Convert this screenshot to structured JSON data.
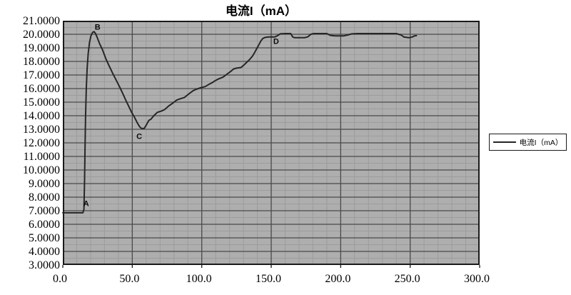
{
  "title": "电流I（mA）",
  "legend": {
    "label": "电流I（mA）"
  },
  "colors": {
    "page_bg": "#ffffff",
    "plot_bg": "#aeaeae",
    "grid_minor": "#9c9c9c",
    "grid_major": "#4a4a4a",
    "frame": "#1a1a1a",
    "line": "#262626",
    "text": "#000000"
  },
  "chart_data": {
    "type": "line",
    "title": "电流I（mA）",
    "xlabel": "",
    "ylabel": "",
    "xlim": [
      0,
      300
    ],
    "ylim": [
      3,
      21
    ],
    "x_ticks": [
      "0.0",
      "50.0",
      "100.0",
      "150.0",
      "200.0",
      "250.0",
      "300.0"
    ],
    "y_ticks": [
      "21.0000",
      "20.0000",
      "19.0000",
      "18.0000",
      "17.0000",
      "16.0000",
      "15.0000",
      "14.0000",
      "13.0000",
      "12.0000",
      "11.0000",
      "10.0000",
      "9.0000",
      "8.0000",
      "7.0000",
      "6.0000",
      "5.0000",
      "4.0000",
      "3.0000"
    ],
    "grid": true,
    "legend_position": "right",
    "series": [
      {
        "name": "电流I（mA）",
        "points": [
          [
            0,
            6.85
          ],
          [
            14.5,
            6.85
          ],
          [
            15.2,
            7.1
          ],
          [
            15.6,
            9.0
          ],
          [
            16.0,
            11.5
          ],
          [
            16.4,
            14.0
          ],
          [
            16.9,
            16.0
          ],
          [
            17.5,
            17.5
          ],
          [
            18.3,
            18.6
          ],
          [
            19.2,
            19.4
          ],
          [
            20.3,
            19.9
          ],
          [
            21.5,
            20.15
          ],
          [
            22.5,
            20.2
          ],
          [
            23.6,
            20.05
          ],
          [
            24.8,
            19.75
          ],
          [
            26.5,
            19.3
          ],
          [
            28.4,
            18.9
          ],
          [
            31.0,
            18.2
          ],
          [
            33.0,
            17.75
          ],
          [
            36.0,
            17.1
          ],
          [
            38.0,
            16.7
          ],
          [
            41.0,
            16.1
          ],
          [
            43.3,
            15.6
          ],
          [
            45.5,
            15.1
          ],
          [
            47.4,
            14.7
          ],
          [
            49.5,
            14.25
          ],
          [
            51.5,
            13.9
          ],
          [
            53.5,
            13.5
          ],
          [
            55.2,
            13.2
          ],
          [
            56.5,
            13.07
          ],
          [
            58.5,
            13.05
          ],
          [
            60.0,
            13.3
          ],
          [
            61.9,
            13.65
          ],
          [
            63.5,
            13.75
          ],
          [
            65.5,
            14.0
          ],
          [
            68.0,
            14.25
          ],
          [
            71.0,
            14.35
          ],
          [
            73.2,
            14.45
          ],
          [
            76.0,
            14.7
          ],
          [
            79.4,
            14.95
          ],
          [
            82.0,
            15.15
          ],
          [
            84.5,
            15.25
          ],
          [
            87.6,
            15.35
          ],
          [
            90.0,
            15.55
          ],
          [
            93.8,
            15.85
          ],
          [
            96.0,
            15.95
          ],
          [
            99.0,
            16.05
          ],
          [
            102.5,
            16.15
          ],
          [
            105.0,
            16.3
          ],
          [
            107.7,
            16.45
          ],
          [
            110.0,
            16.6
          ],
          [
            111.9,
            16.7
          ],
          [
            115.5,
            16.85
          ],
          [
            118.0,
            17.05
          ],
          [
            120.6,
            17.25
          ],
          [
            123.0,
            17.45
          ],
          [
            124.7,
            17.5
          ],
          [
            128.3,
            17.55
          ],
          [
            130.5,
            17.75
          ],
          [
            132.5,
            17.95
          ],
          [
            134.5,
            18.15
          ],
          [
            136.6,
            18.4
          ],
          [
            138.3,
            18.7
          ],
          [
            139.9,
            19.0
          ],
          [
            141.2,
            19.25
          ],
          [
            142.5,
            19.5
          ],
          [
            144.0,
            19.7
          ],
          [
            146.0,
            19.78
          ],
          [
            148.0,
            19.8
          ],
          [
            152.5,
            19.8
          ],
          [
            154.5,
            19.9
          ],
          [
            156.5,
            20.03
          ],
          [
            160.0,
            20.05
          ],
          [
            164.0,
            20.05
          ],
          [
            165.5,
            19.8
          ],
          [
            167.0,
            19.75
          ],
          [
            174.0,
            19.75
          ],
          [
            176.5,
            19.82
          ],
          [
            178.5,
            20.0
          ],
          [
            180.5,
            20.05
          ],
          [
            190.0,
            20.05
          ],
          [
            192.5,
            19.92
          ],
          [
            196.0,
            19.88
          ],
          [
            202.0,
            19.88
          ],
          [
            205.0,
            19.95
          ],
          [
            208.0,
            20.03
          ],
          [
            212.0,
            20.05
          ],
          [
            240.0,
            20.05
          ],
          [
            243.5,
            19.95
          ],
          [
            245.5,
            19.8
          ],
          [
            249.0,
            19.75
          ],
          [
            251.5,
            19.8
          ],
          [
            253.0,
            19.88
          ],
          [
            254.5,
            19.9
          ]
        ]
      }
    ],
    "annotations": [
      {
        "text": "A",
        "x": 16.8,
        "y": 7.55
      },
      {
        "text": "B",
        "x": 25.0,
        "y": 20.55
      },
      {
        "text": "C",
        "x": 55.0,
        "y": 12.5
      },
      {
        "text": "D",
        "x": 153.5,
        "y": 19.5
      }
    ],
    "key_points": {
      "A": [
        15,
        6.85
      ],
      "B": [
        22.5,
        20.2
      ],
      "C": [
        57,
        13.05
      ],
      "D": [
        150,
        19.8
      ]
    }
  }
}
